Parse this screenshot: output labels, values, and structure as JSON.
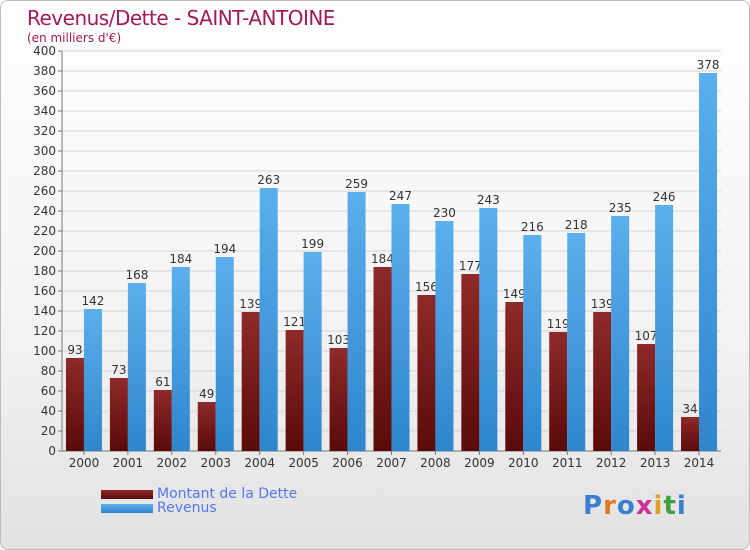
{
  "header": {
    "title": "Revenus/Dette - SAINT-ANTOINE",
    "subtitle": "(en milliers d'€)"
  },
  "legend": {
    "items": [
      {
        "label": "Montant de la Dette",
        "color": "#7a1c1c"
      },
      {
        "label": "Revenus",
        "color": "#4aa3e6"
      }
    ]
  },
  "logo": {
    "text": "Proxiti",
    "letters": [
      "P",
      "r",
      "o",
      "x",
      "i",
      "t",
      "i"
    ],
    "colors": [
      "#3a7fd0",
      "#e07a20",
      "#3a7fd0",
      "#cc3399",
      "#e0a020",
      "#40a040",
      "#3a7fd0"
    ]
  },
  "chart_data": {
    "type": "bar",
    "categories": [
      "2000",
      "2001",
      "2002",
      "2003",
      "2004",
      "2005",
      "2006",
      "2007",
      "2008",
      "2009",
      "2010",
      "2011",
      "2012",
      "2013",
      "2014"
    ],
    "series": [
      {
        "name": "Montant de la Dette",
        "color": "#7a1c1c",
        "values": [
          93,
          73,
          61,
          49,
          139,
          121,
          103,
          184,
          156,
          177,
          149,
          119,
          139,
          107,
          34
        ]
      },
      {
        "name": "Revenus",
        "color": "#4aa3e6",
        "values": [
          142,
          168,
          184,
          194,
          263,
          199,
          259,
          247,
          230,
          243,
          216,
          218,
          235,
          246,
          378
        ]
      }
    ],
    "ylim": [
      0,
      400
    ],
    "ytick_step": 20,
    "grid": true,
    "legend_position": "bottom-left"
  }
}
